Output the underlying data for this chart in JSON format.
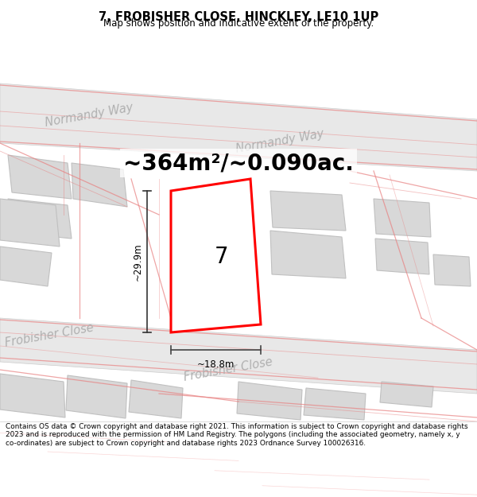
{
  "title": "7, FROBISHER CLOSE, HINCKLEY, LE10 1UP",
  "subtitle": "Map shows position and indicative extent of the property.",
  "footer": "Contains OS data © Crown copyright and database right 2021. This information is subject to Crown copyright and database rights 2023 and is reproduced with the permission of HM Land Registry. The polygons (including the associated geometry, namely x, y co-ordinates) are subject to Crown copyright and database rights 2023 Ordnance Survey 100026316.",
  "area_text": "~364m²/~0.090ac.",
  "map_bg": "#f8f8f8",
  "road_color": "#e8e8e8",
  "building_color": "#d8d8d8",
  "building_stroke": "#c0c0c0",
  "property_stroke": "#ff0000",
  "road_line_color": "#f0a0a0",
  "street_label_color": "#aaaaaa",
  "width_label": "~18.8m",
  "height_label": "~29.9m",
  "number_label": "7"
}
